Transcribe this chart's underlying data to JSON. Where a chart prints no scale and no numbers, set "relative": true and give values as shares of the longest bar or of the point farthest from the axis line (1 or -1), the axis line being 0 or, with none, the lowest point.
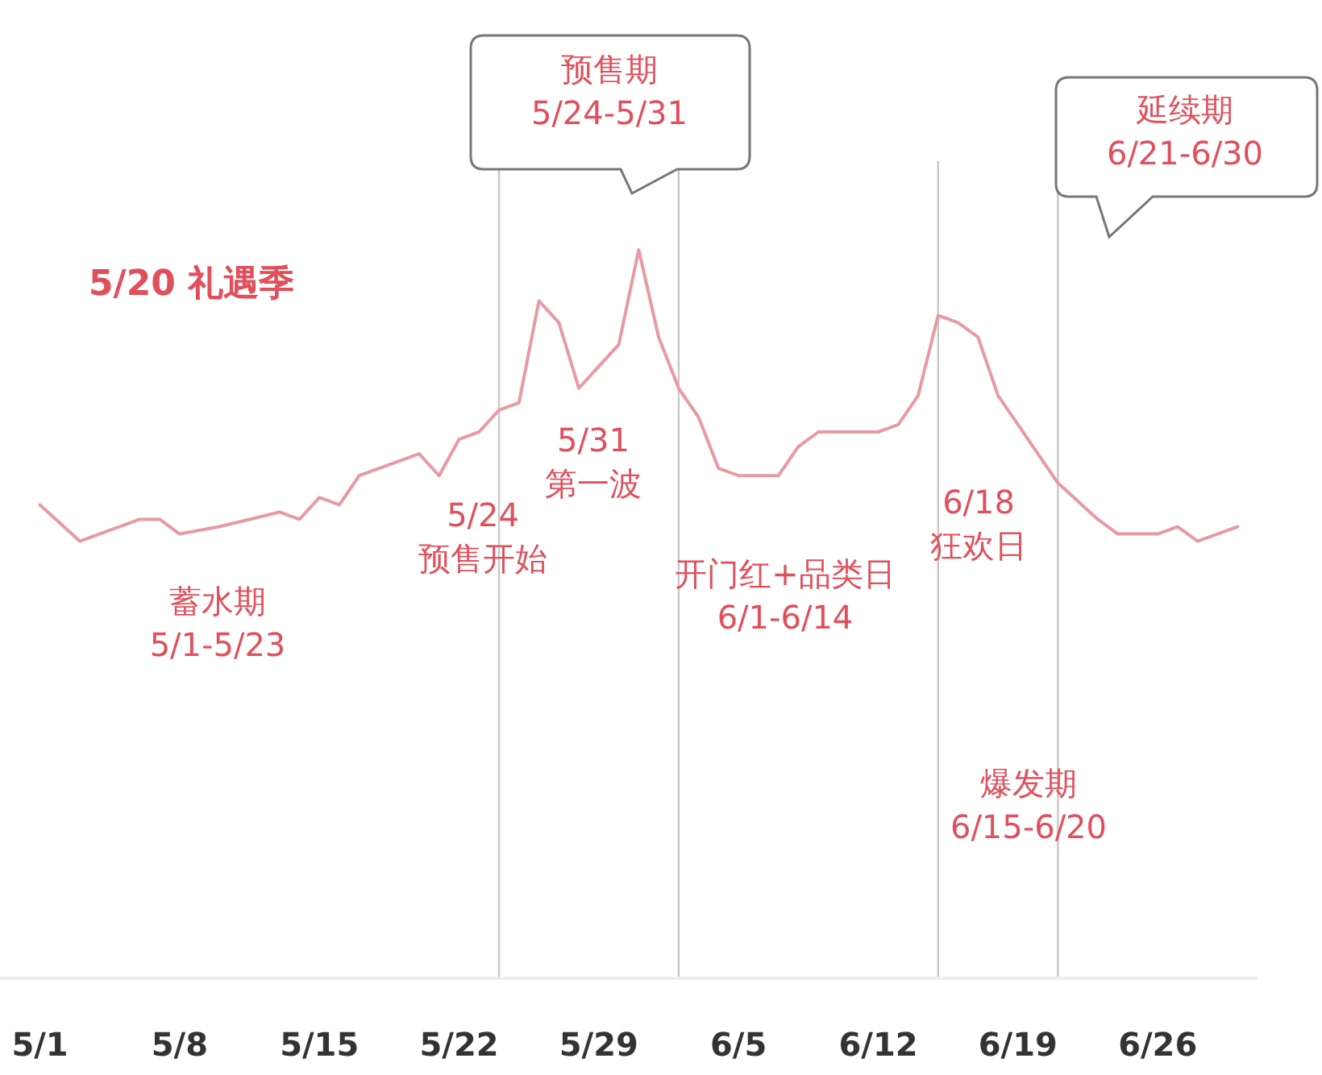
{
  "chart_data": {
    "type": "line",
    "relative": true,
    "color": "#e89aa2",
    "x": [
      "--05-01",
      "--05-03",
      "--05-06",
      "--05-07",
      "--05-08",
      "--05-10",
      "--05-13",
      "--05-14",
      "--05-15",
      "--05-16",
      "--05-17",
      "--05-19",
      "--05-20",
      "--05-21",
      "--05-22",
      "--05-23",
      "--05-24",
      "--05-25",
      "--05-26",
      "--05-27",
      "--05-28",
      "--05-29",
      "--05-30",
      "--05-31",
      "--06-01",
      "--06-02",
      "--06-03",
      "--06-04",
      "--06-05",
      "--06-07",
      "--06-08",
      "--06-09",
      "--06-12",
      "--06-13",
      "--06-14",
      "--06-15",
      "--06-16",
      "--06-17",
      "--06-18",
      "--06-19",
      "--06-21",
      "--06-23",
      "--06-24",
      "--06-26",
      "--06-27",
      "--06-28",
      "--06-30"
    ],
    "values": [
      0.65,
      0.6,
      0.63,
      0.63,
      0.61,
      0.62,
      0.64,
      0.63,
      0.66,
      0.65,
      0.69,
      0.71,
      0.72,
      0.69,
      0.74,
      0.75,
      0.78,
      0.79,
      0.93,
      0.9,
      0.81,
      0.84,
      0.87,
      1,
      0.88,
      0.81,
      0.77,
      0.7,
      0.69,
      0.69,
      0.73,
      0.75,
      0.75,
      0.76,
      0.8,
      0.91,
      0.9,
      0.88,
      0.8,
      0.76,
      0.68,
      0.63,
      0.61,
      0.61,
      0.62,
      0.6,
      0.62
    ],
    "xlim": [
      "--04-29",
      "--07-01"
    ],
    "xticks": [
      {
        "value": "--05-01",
        "label": "5/1"
      },
      {
        "value": "--05-08",
        "label": "5/8"
      },
      {
        "value": "--05-15",
        "label": "5/15"
      },
      {
        "value": "--05-22",
        "label": "5/22"
      },
      {
        "value": "--05-29",
        "label": "5/29"
      },
      {
        "value": "--06-05",
        "label": "6/5"
      },
      {
        "value": "--06-12",
        "label": "6/12"
      },
      {
        "value": "--06-19",
        "label": "6/19"
      },
      {
        "value": "--06-26",
        "label": "6/26"
      }
    ],
    "ref_lines": [
      {
        "axis": "x",
        "value": "--05-24",
        "color": "#c8c8c8"
      },
      {
        "axis": "x",
        "value": "--06-02",
        "color": "#c8c8c8"
      },
      {
        "axis": "x",
        "value": "--06-15",
        "color": "#c8c8c8"
      },
      {
        "axis": "x",
        "value": "--06-21",
        "color": "#c8c8c8"
      }
    ],
    "annotations": [
      "5/20 礼遇季",
      "预售期\n5/24-5/31",
      "延续期\n6/21-6/30",
      "蓄水期\n5/1-5/23",
      "开门红+品类日\n6/1-6/14",
      "爆发期\n6/15-6/20",
      {
        "text": "5/24\n预售开始",
        "x": "--05-24",
        "y": 0.78
      },
      "5/31\n第一波",
      {
        "text": "6/18\n狂欢日",
        "x": "--06-18",
        "y": 0.8
      }
    ]
  }
}
